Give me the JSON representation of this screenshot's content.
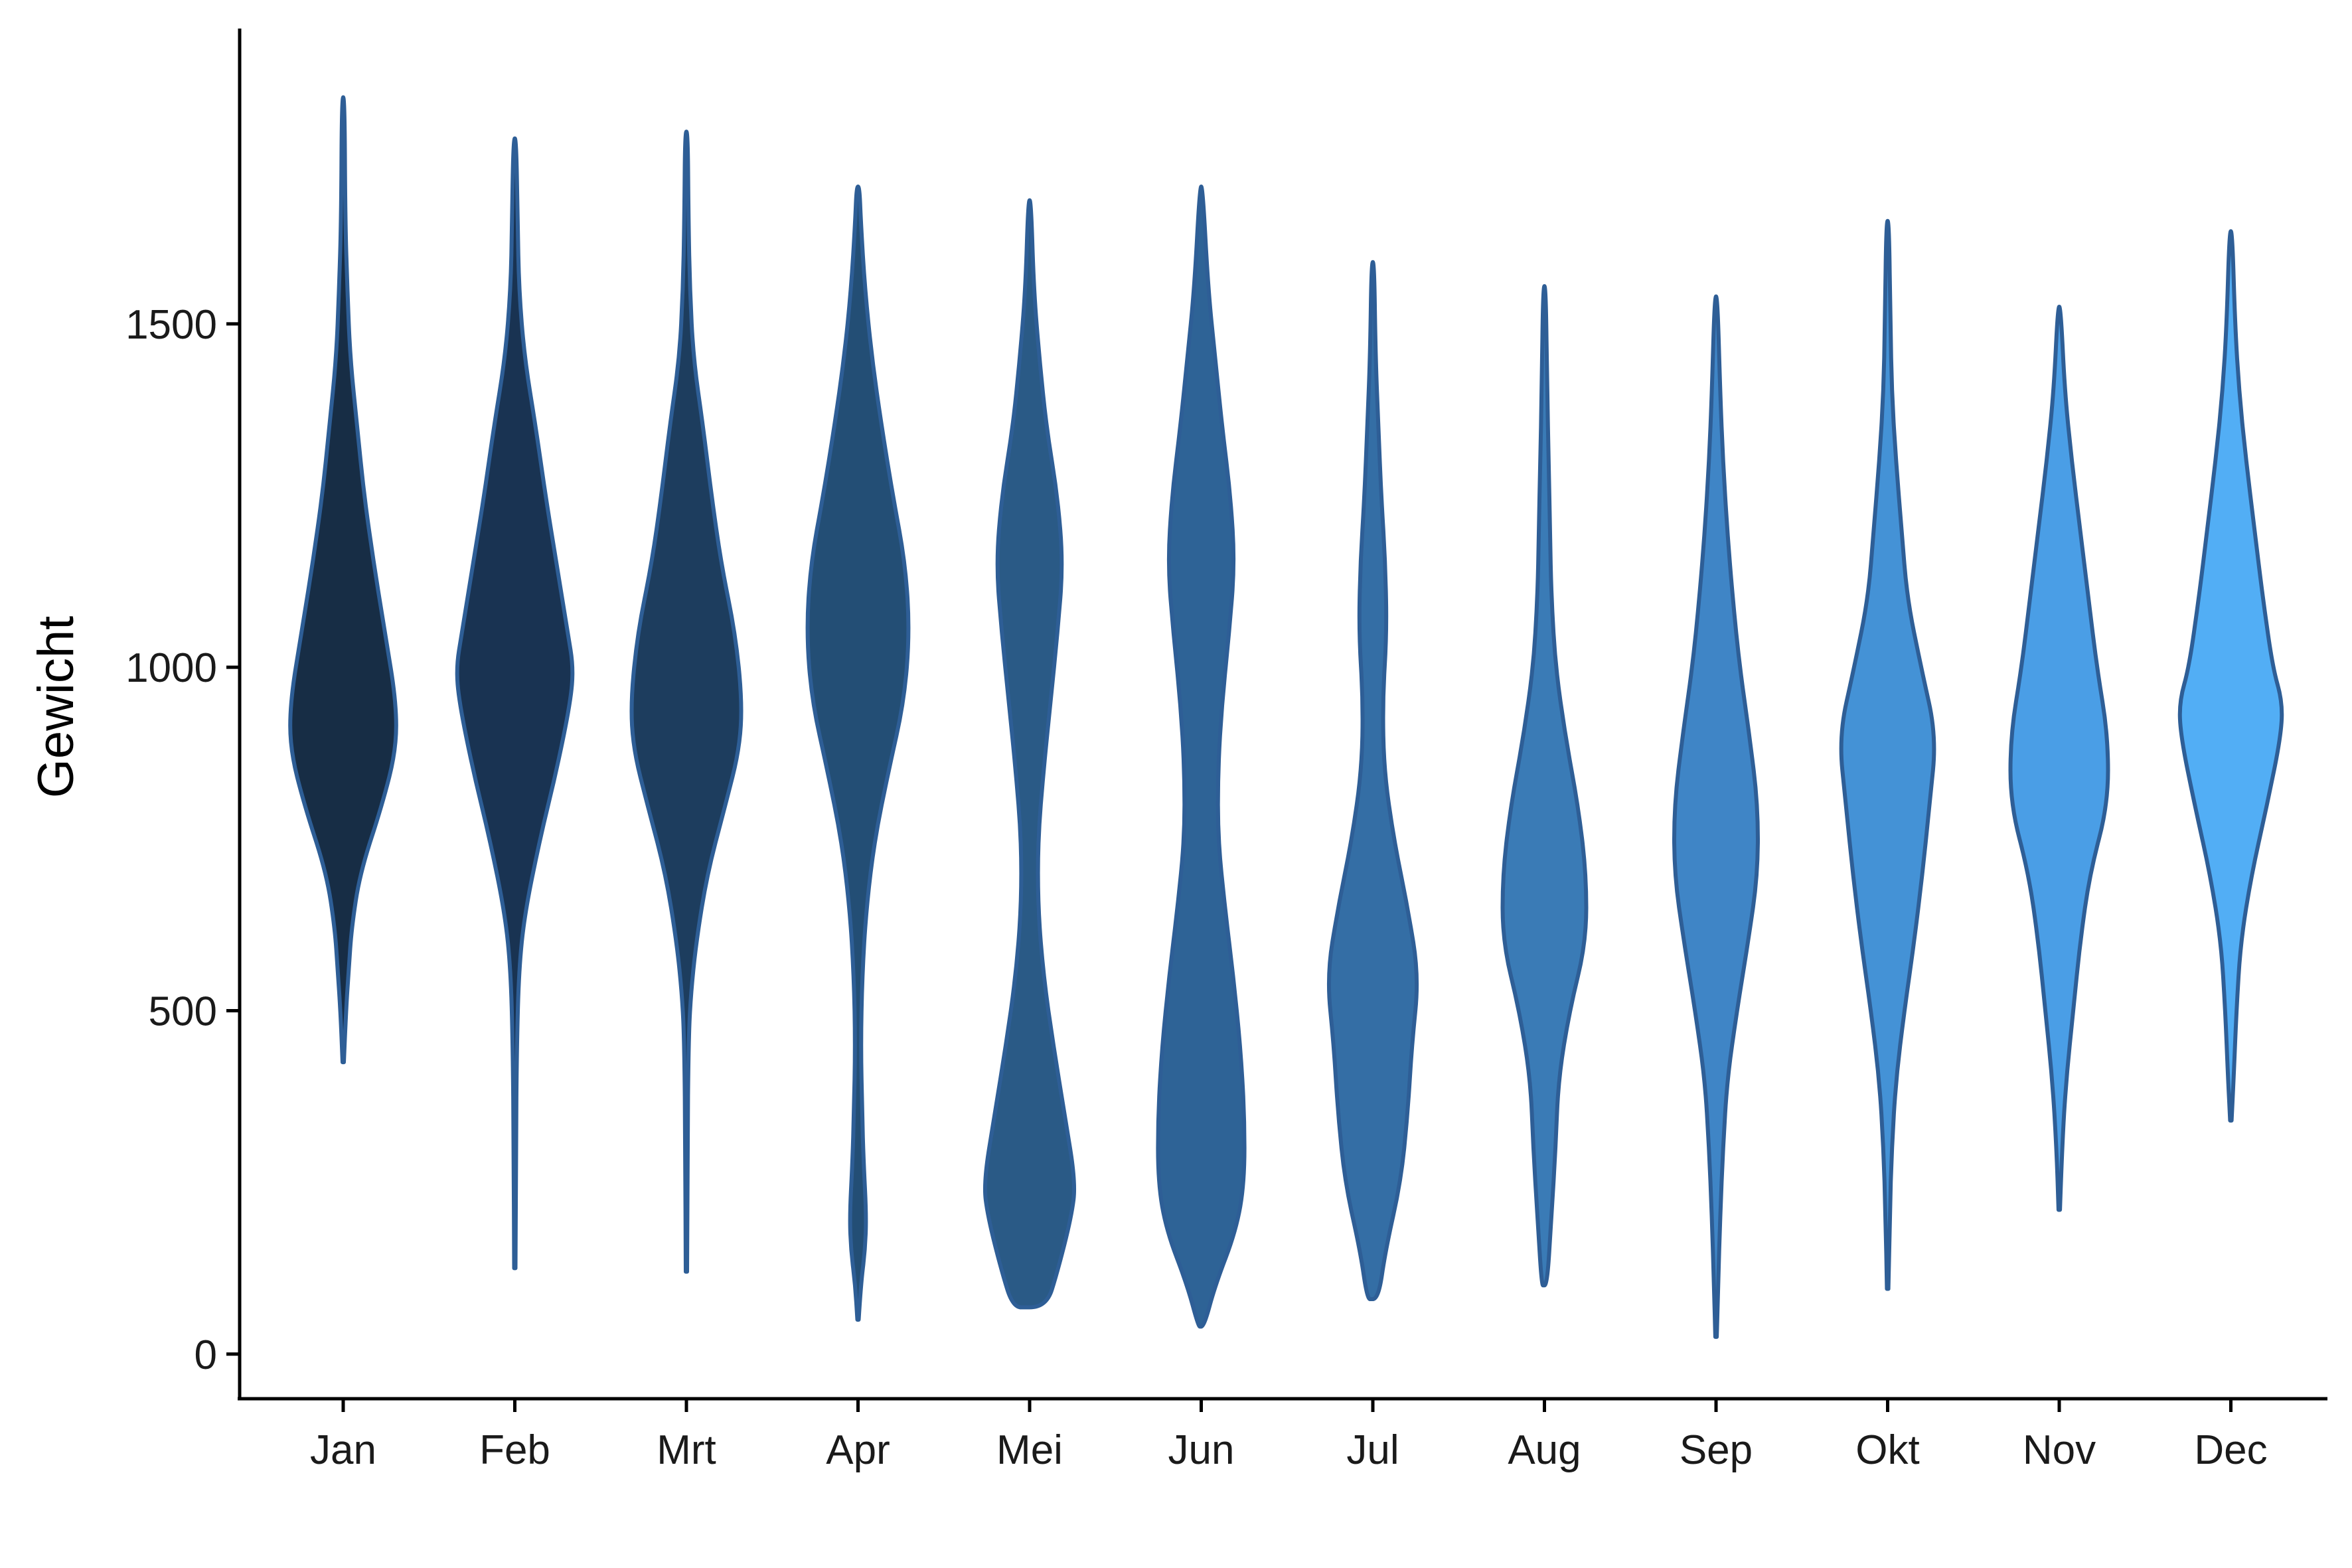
{
  "chart_data": {
    "type": "violin",
    "title": "",
    "xlabel": "",
    "ylabel": "Gewicht",
    "ylim": [
      -65,
      1930
    ],
    "yticks": [
      0,
      500,
      1000,
      1500
    ],
    "grid": false,
    "legend": "none",
    "categories": [
      "Jan",
      "Feb",
      "Mrt",
      "Apr",
      "Mei",
      "Jun",
      "Jul",
      "Aug",
      "Sep",
      "Okt",
      "Nov",
      "Dec"
    ],
    "fill_colors": [
      "#172d45",
      "#193352",
      "#1d3d5e",
      "#234e75",
      "#2a5a86",
      "#2e6396",
      "#346ea5",
      "#3a7bb6",
      "#3f85c6",
      "#4492d6",
      "#4a9ee6",
      "#52aef5"
    ],
    "violins": [
      {
        "category": "Jan",
        "profile": [
          [
            425,
            0.5
          ],
          [
            500,
            2
          ],
          [
            560,
            4
          ],
          [
            620,
            6
          ],
          [
            700,
            12
          ],
          [
            800,
            28
          ],
          [
            880,
            38
          ],
          [
            950,
            38
          ],
          [
            1050,
            30
          ],
          [
            1150,
            22
          ],
          [
            1250,
            15
          ],
          [
            1350,
            10
          ],
          [
            1450,
            5
          ],
          [
            1550,
            3
          ],
          [
            1650,
            1.5
          ],
          [
            1830,
            1
          ]
        ]
      },
      {
        "category": "Feb",
        "profile": [
          [
            125,
            0.5
          ],
          [
            300,
            0.8
          ],
          [
            450,
            1.5
          ],
          [
            560,
            3
          ],
          [
            640,
            7
          ],
          [
            750,
            18
          ],
          [
            850,
            30
          ],
          [
            950,
            40
          ],
          [
            1000,
            42
          ],
          [
            1050,
            38
          ],
          [
            1150,
            30
          ],
          [
            1250,
            22
          ],
          [
            1350,
            15
          ],
          [
            1450,
            7
          ],
          [
            1550,
            3
          ],
          [
            1650,
            2
          ],
          [
            1770,
            1
          ]
        ]
      },
      {
        "category": "Mrt",
        "profile": [
          [
            120,
            0.5
          ],
          [
            300,
            0.8
          ],
          [
            450,
            1.5
          ],
          [
            520,
            3
          ],
          [
            600,
            7
          ],
          [
            700,
            15
          ],
          [
            800,
            28
          ],
          [
            880,
            38
          ],
          [
            950,
            40
          ],
          [
            1050,
            35
          ],
          [
            1150,
            25
          ],
          [
            1250,
            18
          ],
          [
            1350,
            12
          ],
          [
            1450,
            5
          ],
          [
            1550,
            2.5
          ],
          [
            1650,
            1.5
          ],
          [
            1780,
            1
          ]
        ]
      },
      {
        "category": "Apr",
        "profile": [
          [
            50,
            0.5
          ],
          [
            100,
            2
          ],
          [
            150,
            5
          ],
          [
            200,
            6
          ],
          [
            280,
            4
          ],
          [
            350,
            3
          ],
          [
            450,
            2
          ],
          [
            550,
            3
          ],
          [
            650,
            6
          ],
          [
            750,
            12
          ],
          [
            850,
            22
          ],
          [
            950,
            33
          ],
          [
            1050,
            37
          ],
          [
            1150,
            34
          ],
          [
            1250,
            25
          ],
          [
            1350,
            17
          ],
          [
            1450,
            10
          ],
          [
            1550,
            5
          ],
          [
            1650,
            2
          ],
          [
            1700,
            1
          ]
        ]
      },
      {
        "category": "Mei",
        "profile": [
          [
            68,
            0
          ],
          [
            68,
            12
          ],
          [
            120,
            20
          ],
          [
            200,
            30
          ],
          [
            250,
            33
          ],
          [
            350,
            25
          ],
          [
            450,
            17
          ],
          [
            550,
            10
          ],
          [
            650,
            6
          ],
          [
            750,
            6
          ],
          [
            850,
            10
          ],
          [
            950,
            15
          ],
          [
            1050,
            20
          ],
          [
            1150,
            24
          ],
          [
            1250,
            20
          ],
          [
            1350,
            12
          ],
          [
            1450,
            7
          ],
          [
            1550,
            3
          ],
          [
            1680,
            1
          ]
        ]
      },
      {
        "category": "Jun",
        "profile": [
          [
            40,
            0
          ],
          [
            40,
            2
          ],
          [
            100,
            10
          ],
          [
            180,
            25
          ],
          [
            250,
            31
          ],
          [
            350,
            31
          ],
          [
            450,
            28
          ],
          [
            550,
            23
          ],
          [
            650,
            17
          ],
          [
            750,
            12
          ],
          [
            850,
            12
          ],
          [
            950,
            15
          ],
          [
            1050,
            20
          ],
          [
            1150,
            24
          ],
          [
            1250,
            21
          ],
          [
            1350,
            15
          ],
          [
            1450,
            10
          ],
          [
            1550,
            5
          ],
          [
            1700,
            1
          ]
        ]
      },
      {
        "category": "Jul",
        "profile": [
          [
            80,
            0
          ],
          [
            80,
            4
          ],
          [
            150,
            9
          ],
          [
            250,
            20
          ],
          [
            350,
            25
          ],
          [
            450,
            28
          ],
          [
            550,
            33
          ],
          [
            650,
            25
          ],
          [
            750,
            15
          ],
          [
            850,
            8
          ],
          [
            950,
            7
          ],
          [
            1050,
            10
          ],
          [
            1150,
            9
          ],
          [
            1250,
            6
          ],
          [
            1350,
            4
          ],
          [
            1450,
            2
          ],
          [
            1590,
            1
          ]
        ]
      },
      {
        "category": "Aug",
        "profile": [
          [
            100,
            0
          ],
          [
            100,
            2
          ],
          [
            200,
            5
          ],
          [
            300,
            8
          ],
          [
            400,
            10
          ],
          [
            500,
            18
          ],
          [
            600,
            30
          ],
          [
            700,
            30
          ],
          [
            800,
            24
          ],
          [
            900,
            15
          ],
          [
            1000,
            8
          ],
          [
            1100,
            5
          ],
          [
            1200,
            4
          ],
          [
            1300,
            3
          ],
          [
            1400,
            2
          ],
          [
            1555,
            1
          ]
        ]
      },
      {
        "category": "Sep",
        "profile": [
          [
            25,
            0.5
          ],
          [
            100,
            1.5
          ],
          [
            200,
            3
          ],
          [
            300,
            5
          ],
          [
            400,
            8
          ],
          [
            500,
            15
          ],
          [
            600,
            23
          ],
          [
            700,
            30
          ],
          [
            800,
            30
          ],
          [
            900,
            24
          ],
          [
            1000,
            17
          ],
          [
            1100,
            12
          ],
          [
            1200,
            8
          ],
          [
            1300,
            5
          ],
          [
            1400,
            3
          ],
          [
            1540,
            1
          ]
        ]
      },
      {
        "category": "Okt",
        "profile": [
          [
            95,
            0.5
          ],
          [
            200,
            1.5
          ],
          [
            300,
            3
          ],
          [
            400,
            6
          ],
          [
            500,
            12
          ],
          [
            600,
            19
          ],
          [
            700,
            25
          ],
          [
            800,
            30
          ],
          [
            900,
            35
          ],
          [
            1000,
            24
          ],
          [
            1100,
            14
          ],
          [
            1200,
            10
          ],
          [
            1300,
            6
          ],
          [
            1400,
            3
          ],
          [
            1500,
            2
          ],
          [
            1650,
            1
          ]
        ]
      },
      {
        "category": "Nov",
        "profile": [
          [
            210,
            0.5
          ],
          [
            300,
            2
          ],
          [
            400,
            5
          ],
          [
            500,
            10
          ],
          [
            600,
            15
          ],
          [
            700,
            22
          ],
          [
            800,
            35
          ],
          [
            900,
            35
          ],
          [
            1000,
            27
          ],
          [
            1100,
            21
          ],
          [
            1200,
            15
          ],
          [
            1300,
            9
          ],
          [
            1400,
            4
          ],
          [
            1525,
            1
          ]
        ]
      },
      {
        "category": "Dec",
        "profile": [
          [
            340,
            0.5
          ],
          [
            400,
            2
          ],
          [
            500,
            4
          ],
          [
            600,
            7
          ],
          [
            700,
            15
          ],
          [
            800,
            26
          ],
          [
            900,
            36
          ],
          [
            950,
            37
          ],
          [
            1000,
            30
          ],
          [
            1100,
            23
          ],
          [
            1200,
            17
          ],
          [
            1300,
            11
          ],
          [
            1400,
            6
          ],
          [
            1500,
            3
          ],
          [
            1635,
            1
          ]
        ]
      }
    ]
  }
}
